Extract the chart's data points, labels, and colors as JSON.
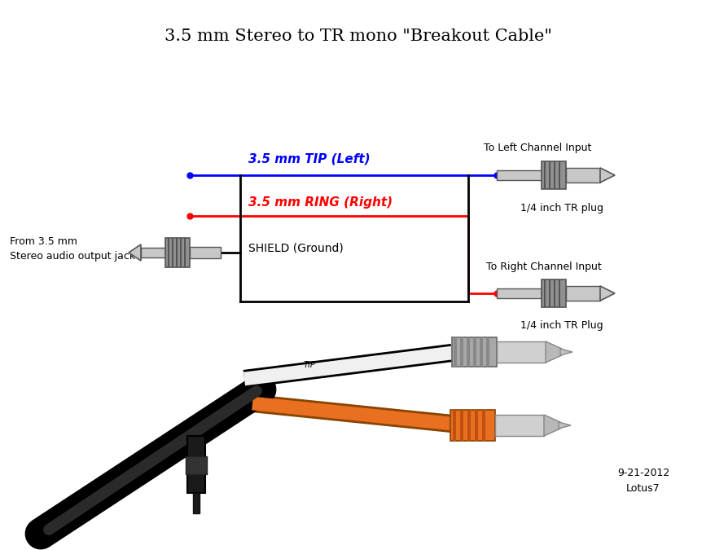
{
  "title": "3.5 mm Stereo to TR mono \"Breakout Cable\"",
  "bg_color": "#ffffff",
  "label_from": "From 3.5 mm\nStereo audio output jack",
  "label_tip": "3.5 mm TIP (Left)",
  "label_ring": "3.5 mm RING (Right)",
  "label_shield": "SHIELD (Ground)",
  "label_left_channel": "To Left Channel Input",
  "label_right_channel": "To Right Channel Input",
  "label_plug_top": "1/4 inch TR plug",
  "label_plug_bottom": "1/4 inch TR Plug",
  "label_date": "9-21-2012\nLotus7",
  "color_blue": "#0000ff",
  "color_red": "#ff0000",
  "color_black": "#000000",
  "color_darkgray": "#555555",
  "color_plug_body": "#c8c8c8",
  "color_plug_sleeve": "#909090",
  "color_orange": "#E87020",
  "color_white_cable": "#f0f0f0"
}
